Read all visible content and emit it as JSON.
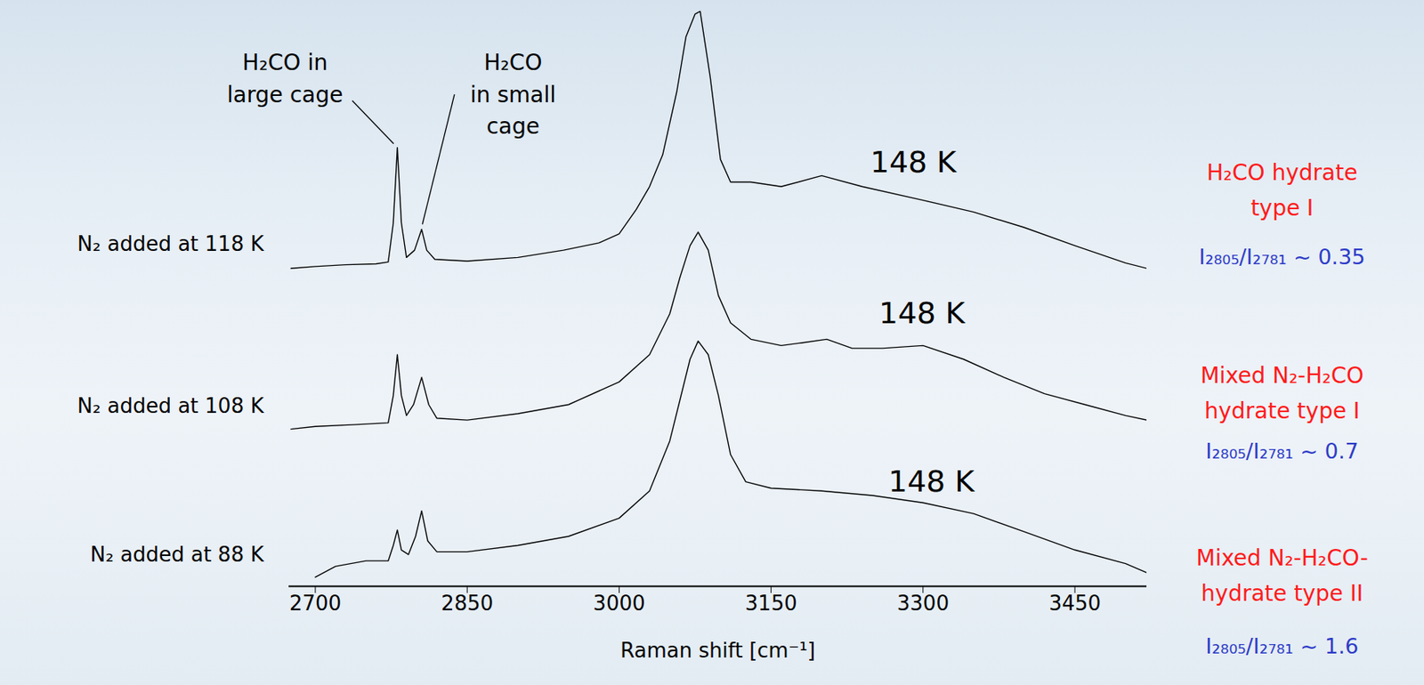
{
  "chart_data": {
    "type": "line",
    "x_label": "Raman shift [cm⁻¹]",
    "xlim": [
      2674,
      3521
    ],
    "xticks": [
      2700,
      2850,
      3000,
      3150,
      3300,
      3450
    ],
    "ylim": [
      0,
      645
    ],
    "tick_labels": "x",
    "grid": false,
    "annotations": [
      {
        "lines": [
          "H₂CO in",
          "large cage"
        ],
        "x": 2781
      },
      {
        "lines": [
          "H₂CO",
          "in small",
          "cage"
        ],
        "x": 2805
      }
    ],
    "series": [
      {
        "name": "N₂ added at 118 K",
        "color": "#000000",
        "temperature": "148 K",
        "hydrate": [
          "H₂CO hydrate",
          "type I"
        ],
        "ratio": "I₂₈₀₅/I₂₇₈₁ ~ 0.35",
        "x": [
          2676,
          2700,
          2730,
          2760,
          2772,
          2777,
          2781,
          2785,
          2790,
          2798,
          2805,
          2810,
          2818,
          2850,
          2900,
          2945,
          2980,
          3000,
          3017,
          3030,
          3043,
          3057,
          3066,
          3075,
          3080,
          3090,
          3100,
          3110,
          3130,
          3160,
          3200,
          3240,
          3300,
          3350,
          3400,
          3450,
          3500,
          3521
        ],
        "values": [
          350,
          352,
          354,
          355,
          357,
          400,
          483,
          400,
          362,
          370,
          393,
          370,
          360,
          358,
          362,
          370,
          378,
          388,
          415,
          440,
          475,
          545,
          605,
          630,
          633,
          560,
          470,
          445,
          445,
          440,
          452,
          440,
          425,
          412,
          395,
          375,
          356,
          350
        ]
      },
      {
        "name": "N₂ added at 108 K",
        "color": "#000000",
        "temperature": "148 K",
        "hydrate": [
          "Mixed N₂-H₂CO",
          "hydrate type I"
        ],
        "ratio": "I₂₈₀₅/I₂₇₈₁ ~ 0.7",
        "x": [
          2676,
          2700,
          2740,
          2772,
          2777,
          2781,
          2785,
          2790,
          2797,
          2805,
          2812,
          2820,
          2850,
          2900,
          2950,
          3000,
          3030,
          3050,
          3060,
          3070,
          3078,
          3088,
          3098,
          3110,
          3130,
          3160,
          3180,
          3205,
          3230,
          3260,
          3300,
          3340,
          3380,
          3420,
          3460,
          3500,
          3521
        ],
        "values": [
          173,
          176,
          178,
          180,
          210,
          255,
          210,
          188,
          200,
          230,
          200,
          185,
          183,
          190,
          200,
          225,
          255,
          300,
          340,
          375,
          390,
          370,
          320,
          290,
          272,
          265,
          268,
          272,
          262,
          262,
          265,
          250,
          230,
          212,
          200,
          188,
          183
        ]
      },
      {
        "name": "N₂ added at 88 K",
        "color": "#000000",
        "temperature": "148 K",
        "hydrate": [
          "Mixed N₂-H₂CO-",
          "hydrate type II"
        ],
        "ratio": "I₂₈₀₅/I₂₇₈₁ ~ 1.6",
        "x": [
          2700,
          2720,
          2750,
          2772,
          2777,
          2781,
          2785,
          2792,
          2799,
          2805,
          2811,
          2820,
          2850,
          2900,
          2950,
          3000,
          3030,
          3050,
          3060,
          3070,
          3078,
          3088,
          3098,
          3110,
          3125,
          3150,
          3200,
          3250,
          3300,
          3350,
          3400,
          3450,
          3500,
          3521
        ],
        "values": [
          10,
          22,
          28,
          28,
          45,
          62,
          40,
          35,
          55,
          83,
          50,
          38,
          38,
          45,
          55,
          75,
          105,
          160,
          205,
          250,
          270,
          255,
          210,
          145,
          115,
          108,
          105,
          100,
          92,
          80,
          60,
          40,
          25,
          15
        ]
      }
    ]
  }
}
